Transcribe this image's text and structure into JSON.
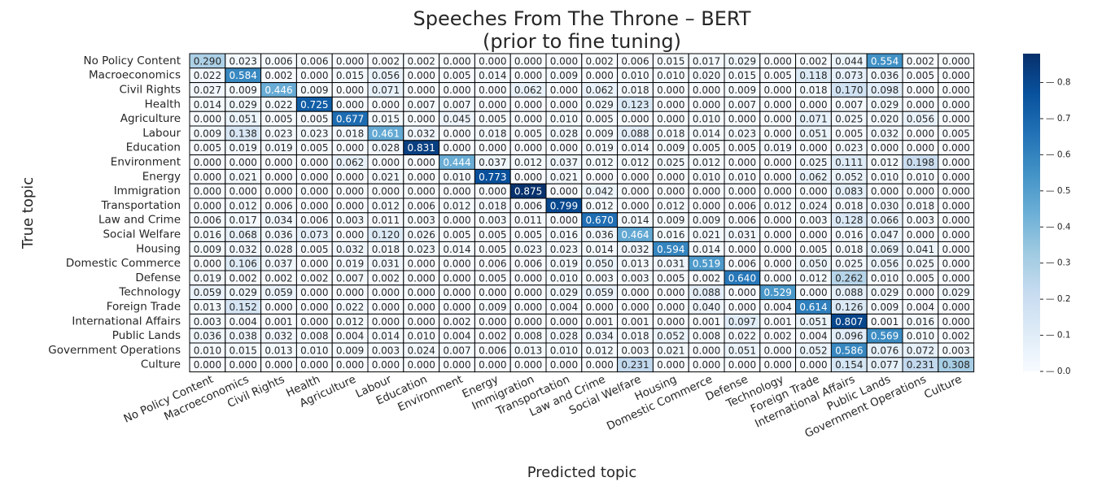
{
  "chart_data": {
    "type": "heatmap",
    "title": "Speeches From The Throne – BERT",
    "subtitle": "(prior to fine tuning)",
    "xlabel": "Predicted topic",
    "ylabel": "True topic",
    "categories": [
      "No Policy Content",
      "Macroeconomics",
      "Civil Rights",
      "Health",
      "Agriculture",
      "Labour",
      "Education",
      "Environment",
      "Energy",
      "Immigration",
      "Transportation",
      "Law and Crime",
      "Social Welfare",
      "Housing",
      "Domestic Commerce",
      "Defense",
      "Technology",
      "Foreign Trade",
      "International Affairs",
      "Public Lands",
      "Government Operations",
      "Culture"
    ],
    "values": [
      [
        0.29,
        0.023,
        0.006,
        0.006,
        0.0,
        0.002,
        0.002,
        0.0,
        0.0,
        0.0,
        0.0,
        0.002,
        0.006,
        0.015,
        0.017,
        0.029,
        0.0,
        0.002,
        0.044,
        0.554,
        0.002,
        0.0
      ],
      [
        0.022,
        0.584,
        0.002,
        0.0,
        0.015,
        0.056,
        0.0,
        0.005,
        0.014,
        0.0,
        0.009,
        0.0,
        0.01,
        0.01,
        0.02,
        0.015,
        0.005,
        0.118,
        0.073,
        0.036,
        0.005,
        0.0
      ],
      [
        0.027,
        0.009,
        0.446,
        0.009,
        0.0,
        0.071,
        0.0,
        0.0,
        0.0,
        0.062,
        0.0,
        0.062,
        0.018,
        0.0,
        0.0,
        0.009,
        0.0,
        0.018,
        0.17,
        0.098,
        0.0,
        0.0
      ],
      [
        0.014,
        0.029,
        0.022,
        0.725,
        0.0,
        0.0,
        0.007,
        0.007,
        0.0,
        0.0,
        0.0,
        0.029,
        0.123,
        0.0,
        0.0,
        0.007,
        0.0,
        0.0,
        0.007,
        0.029,
        0.0,
        0.0
      ],
      [
        0.0,
        0.051,
        0.005,
        0.005,
        0.677,
        0.015,
        0.0,
        0.045,
        0.005,
        0.0,
        0.01,
        0.005,
        0.0,
        0.0,
        0.01,
        0.0,
        0.0,
        0.071,
        0.025,
        0.02,
        0.056,
        0.0
      ],
      [
        0.009,
        0.138,
        0.023,
        0.023,
        0.018,
        0.461,
        0.032,
        0.0,
        0.018,
        0.005,
        0.028,
        0.009,
        0.088,
        0.018,
        0.014,
        0.023,
        0.0,
        0.051,
        0.005,
        0.032,
        0.0,
        0.005
      ],
      [
        0.005,
        0.019,
        0.019,
        0.005,
        0.0,
        0.028,
        0.831,
        0.0,
        0.0,
        0.0,
        0.0,
        0.019,
        0.014,
        0.009,
        0.005,
        0.005,
        0.019,
        0.0,
        0.023,
        0.0,
        0.0,
        0.0
      ],
      [
        0.0,
        0.0,
        0.0,
        0.0,
        0.062,
        0.0,
        0.0,
        0.444,
        0.037,
        0.012,
        0.037,
        0.012,
        0.012,
        0.025,
        0.012,
        0.0,
        0.0,
        0.025,
        0.111,
        0.012,
        0.198,
        0.0
      ],
      [
        0.0,
        0.021,
        0.0,
        0.0,
        0.0,
        0.021,
        0.0,
        0.01,
        0.773,
        0.0,
        0.021,
        0.0,
        0.0,
        0.0,
        0.01,
        0.01,
        0.0,
        0.062,
        0.052,
        0.01,
        0.01,
        0.0
      ],
      [
        0.0,
        0.0,
        0.0,
        0.0,
        0.0,
        0.0,
        0.0,
        0.0,
        0.0,
        0.875,
        0.0,
        0.042,
        0.0,
        0.0,
        0.0,
        0.0,
        0.0,
        0.0,
        0.083,
        0.0,
        0.0,
        0.0
      ],
      [
        0.0,
        0.012,
        0.006,
        0.0,
        0.0,
        0.012,
        0.006,
        0.012,
        0.018,
        0.006,
        0.799,
        0.012,
        0.0,
        0.012,
        0.0,
        0.006,
        0.012,
        0.024,
        0.018,
        0.03,
        0.018,
        0.0
      ],
      [
        0.006,
        0.017,
        0.034,
        0.006,
        0.003,
        0.011,
        0.003,
        0.0,
        0.003,
        0.011,
        0.0,
        0.67,
        0.014,
        0.009,
        0.009,
        0.006,
        0.0,
        0.003,
        0.128,
        0.066,
        0.003,
        0.0
      ],
      [
        0.016,
        0.068,
        0.036,
        0.073,
        0.0,
        0.12,
        0.026,
        0.005,
        0.005,
        0.005,
        0.016,
        0.036,
        0.464,
        0.016,
        0.021,
        0.031,
        0.0,
        0.0,
        0.016,
        0.047,
        0.0,
        0.0
      ],
      [
        0.009,
        0.032,
        0.028,
        0.005,
        0.032,
        0.018,
        0.023,
        0.014,
        0.005,
        0.023,
        0.023,
        0.014,
        0.032,
        0.594,
        0.014,
        0.0,
        0.0,
        0.005,
        0.018,
        0.069,
        0.041,
        0.0
      ],
      [
        0.0,
        0.106,
        0.037,
        0.0,
        0.019,
        0.031,
        0.0,
        0.0,
        0.006,
        0.006,
        0.019,
        0.05,
        0.013,
        0.031,
        0.519,
        0.006,
        0.0,
        0.05,
        0.025,
        0.056,
        0.025,
        0.0
      ],
      [
        0.019,
        0.002,
        0.002,
        0.002,
        0.007,
        0.002,
        0.0,
        0.0,
        0.005,
        0.0,
        0.01,
        0.003,
        0.003,
        0.005,
        0.002,
        0.64,
        0.0,
        0.012,
        0.262,
        0.01,
        0.005,
        0.0
      ],
      [
        0.059,
        0.029,
        0.059,
        0.0,
        0.0,
        0.0,
        0.0,
        0.0,
        0.0,
        0.0,
        0.029,
        0.059,
        0.0,
        0.0,
        0.088,
        0.0,
        0.529,
        0.0,
        0.088,
        0.029,
        0.0,
        0.029
      ],
      [
        0.013,
        0.152,
        0.0,
        0.0,
        0.022,
        0.0,
        0.0,
        0.0,
        0.009,
        0.0,
        0.004,
        0.0,
        0.0,
        0.0,
        0.04,
        0.0,
        0.004,
        0.614,
        0.126,
        0.009,
        0.004,
        0.0
      ],
      [
        0.003,
        0.004,
        0.001,
        0.0,
        0.012,
        0.0,
        0.0,
        0.002,
        0.0,
        0.0,
        0.0,
        0.001,
        0.001,
        0.0,
        0.001,
        0.097,
        0.001,
        0.051,
        0.807,
        0.001,
        0.016,
        0.0
      ],
      [
        0.036,
        0.038,
        0.032,
        0.008,
        0.004,
        0.014,
        0.01,
        0.004,
        0.002,
        0.008,
        0.028,
        0.034,
        0.018,
        0.052,
        0.008,
        0.022,
        0.002,
        0.004,
        0.096,
        0.569,
        0.01,
        0.002
      ],
      [
        0.01,
        0.015,
        0.013,
        0.01,
        0.009,
        0.003,
        0.024,
        0.007,
        0.006,
        0.013,
        0.01,
        0.012,
        0.003,
        0.021,
        0.0,
        0.051,
        0.0,
        0.052,
        0.586,
        0.076,
        0.072,
        0.003
      ],
      [
        0.0,
        0.0,
        0.0,
        0.0,
        0.0,
        0.0,
        0.0,
        0.0,
        0.0,
        0.0,
        0.0,
        0.0,
        0.231,
        0.0,
        0.0,
        0.0,
        0.0,
        0.0,
        0.154,
        0.077,
        0.231,
        0.308
      ]
    ],
    "colorbar": {
      "colormap": "Blues",
      "vmin": 0.0,
      "vmax": 0.88,
      "ticks": [
        "0.0",
        "0.1",
        "0.2",
        "0.3",
        "0.4",
        "0.5",
        "0.6",
        "0.7",
        "0.8"
      ]
    },
    "grid": true
  }
}
